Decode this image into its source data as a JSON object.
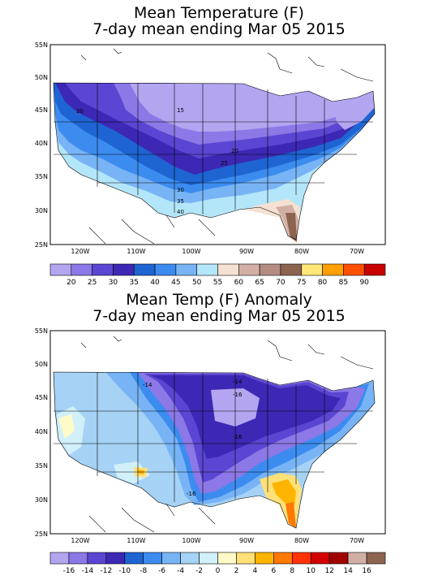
{
  "panels": [
    {
      "title_line1": "Mean Temperature (F)",
      "title_line2": "7-day mean ending Mar 05 2015",
      "lat_ticks": [
        "55N",
        "50N",
        "45N",
        "40N",
        "35N",
        "30N",
        "25N"
      ],
      "lon_ticks": [
        "120W",
        "110W",
        "100W",
        "90W",
        "80W",
        "70W"
      ],
      "colorbar": {
        "labels": [
          "20",
          "25",
          "30",
          "35",
          "40",
          "45",
          "50",
          "55",
          "60",
          "65",
          "70",
          "75",
          "80",
          "85",
          "90"
        ],
        "colors": [
          "#b4a5f0",
          "#8c78e6",
          "#5a46d2",
          "#3c28b4",
          "#1e64d2",
          "#3c8cf0",
          "#78b4f5",
          "#b4e6fa",
          "#f5e1d2",
          "#d2afa5",
          "#b48c82",
          "#8c6450",
          "#ffe678",
          "#ffa000",
          "#ff5000",
          "#c80000"
        ]
      },
      "contour_labels": [
        "30",
        "15",
        "20",
        "25",
        "30",
        "35",
        "40"
      ]
    },
    {
      "title_line1": "Mean Temp (F) Anomaly",
      "title_line2": "7-day mean ending Mar 05 2015",
      "lat_ticks": [
        "55N",
        "50N",
        "45N",
        "40N",
        "35N",
        "30N",
        "25N"
      ],
      "lon_ticks": [
        "120W",
        "110W",
        "100W",
        "90W",
        "80W",
        "70W"
      ],
      "colorbar": {
        "labels": [
          "-16",
          "-14",
          "-12",
          "-10",
          "-8",
          "-6",
          "-4",
          "-2",
          "0",
          "2",
          "4",
          "6",
          "8",
          "10",
          "12",
          "14",
          "16"
        ],
        "colors": [
          "#b4a5f0",
          "#8c78e6",
          "#5a46d2",
          "#3c28b4",
          "#1e64d2",
          "#3c8cf0",
          "#78b4f5",
          "#a5d2f5",
          "#d2f0fa",
          "#fffac8",
          "#ffe178",
          "#ffb400",
          "#ff7800",
          "#ff3200",
          "#d20000",
          "#a00000",
          "#d2afa5",
          "#8c6450"
        ]
      },
      "contour_labels": [
        "-14",
        "-14",
        "-16",
        "-16",
        "-16"
      ]
    }
  ]
}
